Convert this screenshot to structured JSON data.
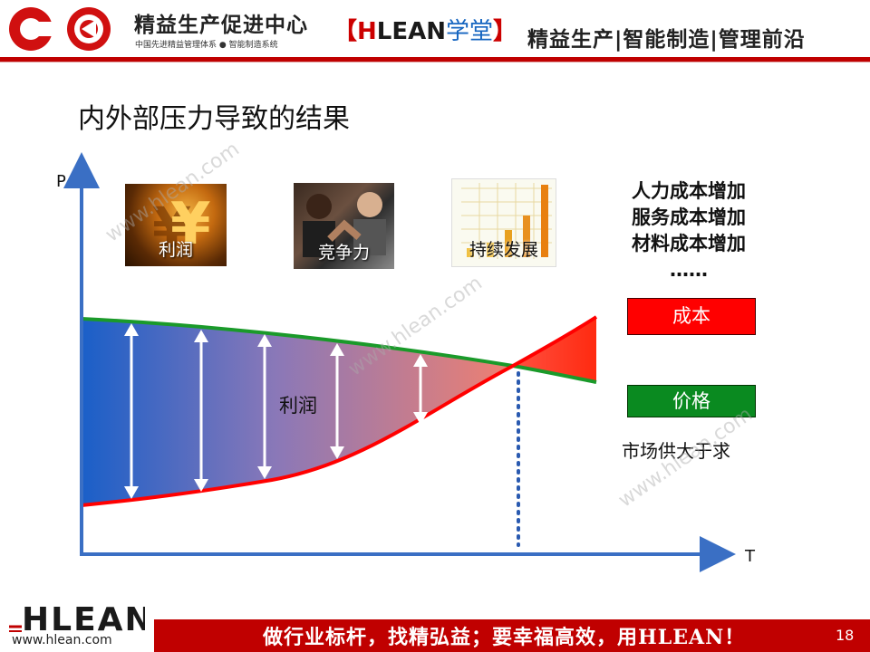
{
  "header": {
    "logo_title": "精益生产促进中心",
    "logo_subtitle": "中国先进精益管理体系 ● 智能制造系统",
    "tag_bracket_open": "【",
    "tag_h": "H",
    "tag_lean": "LEAN",
    "tag_cn": "学堂",
    "tag_bracket_close": "】",
    "slogan": "精益生产|智能制造|管理前沿"
  },
  "slide": {
    "title": "内外部压力导致的结果"
  },
  "diagram": {
    "y_axis_label": "P",
    "x_axis_label": "T",
    "photos": [
      {
        "label": "利润",
        "icon": "yen-coin-image"
      },
      {
        "label": "竞争力",
        "icon": "arm-wrestling-image"
      },
      {
        "label": "持续发展",
        "icon": "growth-bar-chart-image"
      }
    ],
    "cost_list": [
      "人力成本增加",
      "服务成本增加",
      "材料成本增加",
      "……"
    ],
    "legend_cost": "成本",
    "legend_price": "价格",
    "market_note": "市场供大于求",
    "profit_area_label": "利润",
    "colors": {
      "axis": "#3a6fc4",
      "price_line": "#1a9a2a",
      "cost_line": "#ff0000",
      "profit_start": "#1a5fc8",
      "profit_end": "#f08070",
      "dotted": "#2a5ab0"
    }
  },
  "watermark": {
    "text": "www.hlean.com"
  },
  "footer": {
    "logo_text": "HLEAN",
    "url": "www.hlean.com",
    "slogan": "做行业标杆，找精弘益；要幸福高效，用HLEAN！",
    "page_number": "18"
  }
}
